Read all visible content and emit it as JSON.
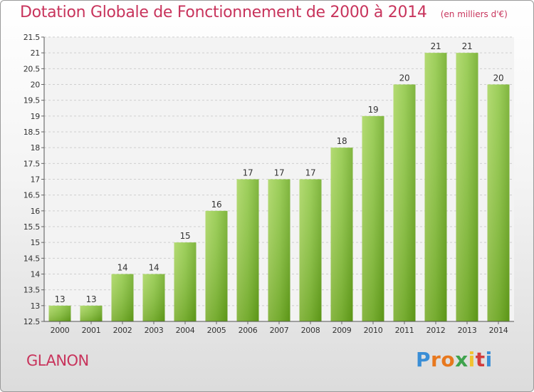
{
  "header": {
    "title": "Dotation Globale de Fonctionnement de 2000 à 2014",
    "subtitle": "(en milliers d'€)"
  },
  "footer": {
    "town": "GLANON",
    "logo_text": "Proxiti"
  },
  "colors": {
    "accent": "#c8345c",
    "bar_light": "#9ccc4a",
    "bar_dark": "#5e9a14"
  },
  "chart_data": {
    "type": "bar",
    "categories": [
      "2000",
      "2001",
      "2002",
      "2003",
      "2004",
      "2005",
      "2006",
      "2007",
      "2008",
      "2009",
      "2010",
      "2011",
      "2012",
      "2013",
      "2014"
    ],
    "values": [
      13,
      13,
      14,
      14,
      15,
      16,
      17,
      17,
      17,
      18,
      19,
      20,
      21,
      21,
      20
    ],
    "ylim": [
      12.5,
      21.5
    ],
    "yticks": [
      "12.5",
      "13",
      "13.5",
      "14",
      "14.5",
      "15",
      "15.5",
      "16",
      "16.5",
      "17",
      "17.5",
      "18",
      "18.5",
      "19",
      "19.5",
      "20",
      "20.5",
      "21",
      "21.5"
    ],
    "grid": true,
    "legend": "none"
  }
}
